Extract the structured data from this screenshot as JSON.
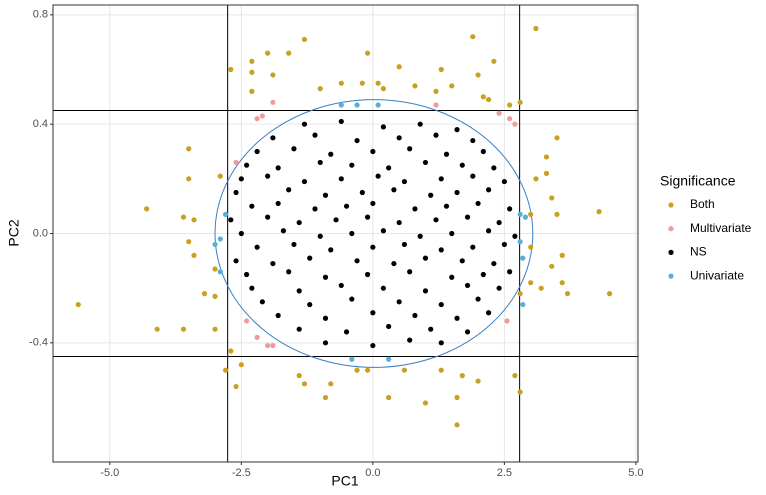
{
  "chart_data": {
    "type": "scatter",
    "xlabel": "PC1",
    "ylabel": "PC2",
    "xlim": [
      -6.08,
      5.04
    ],
    "ylim": [
      -0.836,
      0.836
    ],
    "xticks": [
      {
        "value": -5,
        "label": "-5.0"
      },
      -2.5,
      {
        "value": 0,
        "label": "0.0"
      },
      2.5,
      {
        "value": 5,
        "label": "5.0"
      }
    ],
    "yticks": [
      -0.4,
      {
        "value": 0,
        "label": "0.0"
      },
      0.4,
      0.8
    ],
    "grid": true,
    "vlines": [
      -2.76,
      2.79
    ],
    "hlines": [
      0.45,
      -0.45
    ],
    "ellipse": {
      "cx": 0.02,
      "cy": 0,
      "rx": 3.02,
      "ry": 0.49,
      "color": "#3a7fc1"
    },
    "legend_title": "Significance",
    "legend": "right",
    "series": [
      {
        "name": "Both",
        "color": "#c9a020",
        "x": [
          3.1,
          1.9,
          -1.6,
          -2.0,
          -2.3,
          -1.3,
          2.3,
          -0.1,
          -2.7,
          -2.3,
          -1.9,
          0.5,
          1.3,
          2.0,
          -1.0,
          -0.6,
          -0.2,
          0.1,
          0.2,
          0.8,
          1.2,
          1.5,
          2.1,
          2.2,
          2.6,
          2.8,
          -2.3,
          3.5,
          3.3,
          -3.5,
          -3.5,
          3.1,
          3.3,
          -2.9,
          -4.3,
          -3.6,
          -3.4,
          3.4,
          3.5,
          4.3,
          3.0,
          -3.5,
          -3.4,
          -3.0,
          3.0,
          3.6,
          3.4,
          -3.0,
          3.6,
          3.0,
          -5.6,
          -3.2,
          4.5,
          3.2,
          3.7,
          2.8,
          -4.1,
          -3.6,
          -3.0,
          -2.8,
          -2.5,
          -2.7,
          -1.4,
          -0.8,
          -0.3,
          -0.1,
          0.6,
          1.3,
          1.7,
          2.7,
          2.8,
          2.0,
          -0.9,
          0.3,
          1.0,
          1.6,
          -1.3,
          1.6,
          -2.6
        ],
        "values": [
          0.75,
          0.72,
          0.66,
          0.66,
          0.63,
          0.71,
          0.63,
          0.66,
          0.6,
          0.59,
          0.58,
          0.61,
          0.6,
          0.58,
          0.53,
          0.55,
          0.55,
          0.55,
          0.53,
          0.54,
          0.52,
          0.54,
          0.5,
          0.49,
          0.47,
          0.48,
          0.52,
          0.35,
          0.28,
          0.31,
          0.2,
          0.2,
          0.22,
          0.21,
          0.09,
          0.06,
          0.05,
          0.13,
          0.07,
          0.08,
          0.07,
          -0.03,
          -0.08,
          -0.13,
          -0.05,
          -0.08,
          -0.12,
          -0.23,
          -0.18,
          -0.18,
          -0.26,
          -0.22,
          -0.22,
          -0.2,
          -0.22,
          -0.22,
          -0.35,
          -0.35,
          -0.35,
          -0.5,
          -0.48,
          -0.43,
          -0.52,
          -0.55,
          -0.5,
          -0.5,
          -0.5,
          -0.5,
          -0.52,
          -0.52,
          -0.58,
          -0.54,
          -0.6,
          -0.6,
          -0.62,
          -0.6,
          -0.55,
          -0.7,
          -0.56
        ]
      },
      {
        "name": "Multivariate",
        "color": "#f09a9a",
        "x": [
          -2.2,
          -2.1,
          -2.6,
          -1.9,
          2.4,
          2.6,
          2.7,
          -2.4,
          -2.0,
          -1.9,
          -2.2,
          2.55,
          1.2
        ],
        "values": [
          0.42,
          0.43,
          0.26,
          0.48,
          0.44,
          0.42,
          0.4,
          -0.32,
          -0.41,
          -0.41,
          -0.38,
          -0.32,
          0.47
        ]
      },
      {
        "name": "NS",
        "color": "#000000",
        "x": [
          -1.3,
          -0.6,
          0.2,
          0.9,
          1.6,
          -1.9,
          -1.1,
          -0.3,
          0.5,
          1.2,
          1.9,
          -2.2,
          -1.5,
          -0.8,
          0.0,
          0.7,
          1.4,
          2.1,
          -2.4,
          -1.8,
          -1.0,
          -0.4,
          0.3,
          1.0,
          1.7,
          2.3,
          -2.5,
          -2.0,
          -1.3,
          -0.6,
          0.1,
          0.6,
          1.3,
          1.9,
          2.5,
          -2.6,
          -1.6,
          -0.9,
          -0.2,
          0.4,
          1.1,
          1.6,
          2.2,
          -2.3,
          -1.8,
          -1.1,
          -0.5,
          0.0,
          0.8,
          1.4,
          2.0,
          2.6,
          -2.7,
          -2.0,
          -1.4,
          -0.7,
          -0.1,
          0.5,
          1.2,
          1.8,
          2.4,
          -2.5,
          -1.7,
          -1.0,
          -0.4,
          0.2,
          0.9,
          1.5,
          2.2,
          2.7,
          -2.2,
          -1.5,
          -0.8,
          0.0,
          0.6,
          1.3,
          1.9,
          2.5,
          -2.6,
          -1.9,
          -1.2,
          -0.3,
          0.4,
          1.0,
          1.7,
          2.3,
          -2.4,
          -1.6,
          -0.9,
          -0.1,
          0.7,
          1.5,
          2.1,
          2.6,
          -2.3,
          -1.4,
          -0.6,
          0.2,
          1.0,
          1.8,
          2.4,
          -2.1,
          -1.2,
          -0.4,
          0.5,
          1.3,
          2.0,
          -1.8,
          -0.9,
          0.0,
          0.8,
          1.6,
          2.2,
          -1.4,
          -0.5,
          0.3,
          1.1,
          1.8,
          -0.9,
          0.0,
          0.7,
          1.3
        ],
        "values": [
          0.4,
          0.41,
          0.39,
          0.4,
          0.38,
          0.35,
          0.36,
          0.34,
          0.35,
          0.36,
          0.34,
          0.3,
          0.31,
          0.29,
          0.3,
          0.31,
          0.29,
          0.3,
          0.25,
          0.24,
          0.26,
          0.25,
          0.24,
          0.26,
          0.25,
          0.24,
          0.2,
          0.21,
          0.19,
          0.2,
          0.21,
          0.19,
          0.2,
          0.21,
          0.19,
          0.15,
          0.16,
          0.14,
          0.15,
          0.16,
          0.14,
          0.15,
          0.16,
          0.1,
          0.11,
          0.09,
          0.1,
          0.11,
          0.09,
          0.1,
          0.11,
          0.09,
          0.05,
          0.06,
          0.04,
          0.05,
          0.06,
          0.04,
          0.05,
          0.06,
          0.04,
          0.0,
          0.01,
          -0.01,
          0.0,
          0.01,
          -0.01,
          0.0,
          0.01,
          -0.01,
          -0.05,
          -0.04,
          -0.06,
          -0.05,
          -0.04,
          -0.06,
          -0.05,
          -0.04,
          -0.1,
          -0.11,
          -0.09,
          -0.1,
          -0.11,
          -0.09,
          -0.1,
          -0.11,
          -0.15,
          -0.14,
          -0.16,
          -0.15,
          -0.14,
          -0.16,
          -0.15,
          -0.14,
          -0.2,
          -0.21,
          -0.19,
          -0.2,
          -0.21,
          -0.19,
          -0.2,
          -0.25,
          -0.26,
          -0.24,
          -0.25,
          -0.26,
          -0.24,
          -0.3,
          -0.31,
          -0.29,
          -0.3,
          -0.31,
          -0.29,
          -0.35,
          -0.36,
          -0.34,
          -0.35,
          -0.36,
          -0.4,
          -0.41,
          -0.39,
          -0.4
        ]
      },
      {
        "name": "Univariate",
        "color": "#5aaedc",
        "x": [
          -0.6,
          -0.3,
          0.1,
          -2.8,
          -2.9,
          -2.9,
          2.8,
          2.9,
          2.8,
          2.85,
          -0.4,
          0.3,
          2.85,
          -3.0
        ],
        "values": [
          0.47,
          0.47,
          0.47,
          0.07,
          -0.02,
          -0.14,
          0.07,
          0.06,
          -0.03,
          -0.09,
          -0.46,
          -0.46,
          -0.26,
          -0.04
        ]
      }
    ]
  }
}
